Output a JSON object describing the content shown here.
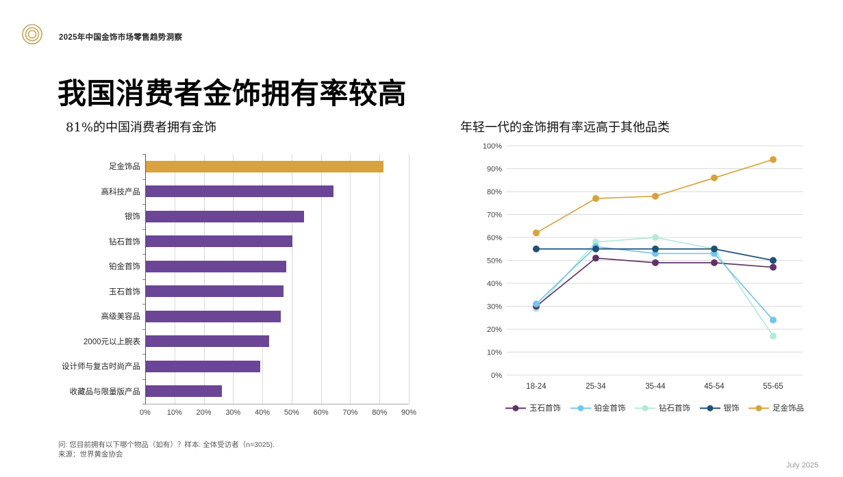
{
  "header": {
    "brand": "2025年中国金饰市场零售趋势洞察",
    "logo": "gold-concentric-rings-logo"
  },
  "page": {
    "title": "我国消费者金饰拥有率较高"
  },
  "footnotes": {
    "question": "问: 您目前拥有以下哪个物品（如有）？样本: 全体受访者（n=3025).",
    "source": "来源：世界黄金协会",
    "date": "July 2025"
  },
  "colors": {
    "gold": "#D7A33E",
    "bar_purple": "#6B4596",
    "grid": "#D9D9D9",
    "axis_line": "#595959",
    "axis_text": "#404040",
    "logo_gold": "#C9A35C"
  },
  "chart_data": [
    {
      "type": "bar",
      "orientation": "horizontal",
      "title": "81%的中国消费者拥有金饰",
      "categories": [
        "足金饰品",
        "高科技产品",
        "银饰",
        "钻石首饰",
        "铂金首饰",
        "玉石首饰",
        "高级美容品",
        "2000元以上腕表",
        "设计师与复古时尚产品",
        "收藏品与限量版产品"
      ],
      "values": [
        81,
        64,
        54,
        50,
        48,
        47,
        46,
        42,
        39,
        26
      ],
      "highlight_category": "足金饰品",
      "highlight_color": "#D7A33E",
      "bar_color": "#6B4596",
      "xlim": [
        0,
        90
      ],
      "x_ticks": [
        "0%",
        "10%",
        "20%",
        "30%",
        "40%",
        "50%",
        "60%",
        "70%",
        "80%",
        "90%"
      ],
      "grid": "vertical-only",
      "unit": "%"
    },
    {
      "type": "line",
      "title": "年轻一代的金饰拥有率远高于其他品类",
      "categories": [
        "18-24",
        "25-34",
        "35-44",
        "45-54",
        "55-65"
      ],
      "series": [
        {
          "name": "玉石首饰",
          "color": "#5F3468",
          "values": [
            30,
            51,
            49,
            49,
            47
          ]
        },
        {
          "name": "铂金首饰",
          "color": "#74C6EE",
          "values": [
            31,
            56,
            53,
            53,
            24
          ]
        },
        {
          "name": "钻石首饰",
          "color": "#B4E9D6",
          "values": [
            29,
            58,
            60,
            55,
            17
          ]
        },
        {
          "name": "银饰",
          "color": "#1C5278",
          "values": [
            55,
            55,
            55,
            55,
            50
          ]
        },
        {
          "name": "足金饰品",
          "color": "#D7A33E",
          "values": [
            62,
            77,
            78,
            86,
            94
          ]
        }
      ],
      "ylim": [
        0,
        100
      ],
      "y_ticks": [
        "100%",
        "90%",
        "80%",
        "70%",
        "60%",
        "50%",
        "40%",
        "30%",
        "20%",
        "10%",
        "0%"
      ],
      "grid": "horizontal-only",
      "legend_position": "bottom",
      "unit": "%"
    }
  ]
}
